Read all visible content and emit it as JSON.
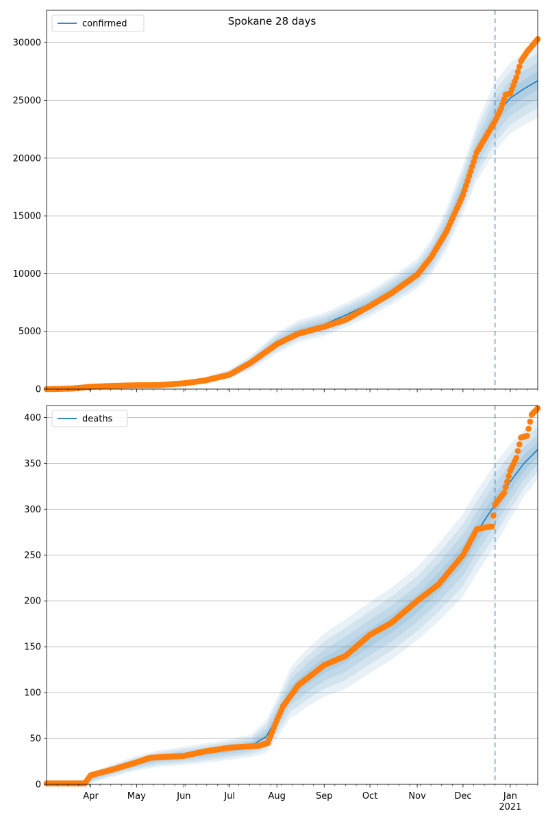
{
  "figure": {
    "title": "Spokane 28 days"
  },
  "chart_data": [
    {
      "type": "line",
      "title": "Spokane 28 days",
      "legend": {
        "placement": "top-left",
        "entries": [
          "confirmed"
        ]
      },
      "grid": {
        "y": true,
        "x": false
      },
      "ylim": [
        0,
        32800
      ],
      "xlim": [
        "2020-03-03",
        "2021-01-19"
      ],
      "y_ticks": [
        0,
        5000,
        10000,
        15000,
        20000,
        25000,
        30000
      ],
      "vline_date": "2020-12-22",
      "model_series": {
        "name": "confirmed",
        "points": [
          [
            "2020-03-03",
            0
          ],
          [
            "2020-03-20",
            60
          ],
          [
            "2020-04-01",
            150
          ],
          [
            "2020-04-15",
            270
          ],
          [
            "2020-05-01",
            330
          ],
          [
            "2020-05-15",
            380
          ],
          [
            "2020-06-01",
            560
          ],
          [
            "2020-06-15",
            780
          ],
          [
            "2020-07-01",
            1300
          ],
          [
            "2020-07-15",
            2300
          ],
          [
            "2020-08-01",
            4000
          ],
          [
            "2020-08-15",
            5000
          ],
          [
            "2020-09-01",
            5600
          ],
          [
            "2020-09-15",
            6400
          ],
          [
            "2020-10-01",
            7400
          ],
          [
            "2020-10-15",
            8500
          ],
          [
            "2020-11-01",
            10000
          ],
          [
            "2020-11-10",
            11400
          ],
          [
            "2020-11-20",
            13800
          ],
          [
            "2020-12-01",
            17300
          ],
          [
            "2020-12-10",
            20500
          ],
          [
            "2020-12-22",
            23600
          ],
          [
            "2021-01-01",
            25200
          ],
          [
            "2021-01-10",
            26000
          ],
          [
            "2021-01-19",
            26700
          ]
        ]
      },
      "band_spread": [
        [
          "2020-03-03",
          40
        ],
        [
          "2020-06-01",
          150
        ],
        [
          "2020-07-01",
          400
        ],
        [
          "2020-08-01",
          900
        ],
        [
          "2020-09-01",
          1000
        ],
        [
          "2020-10-01",
          1100
        ],
        [
          "2020-11-01",
          1300
        ],
        [
          "2020-12-01",
          2100
        ],
        [
          "2020-12-22",
          3000
        ],
        [
          "2021-01-19",
          3200
        ]
      ],
      "observed_series": {
        "anchors": [
          [
            "2020-03-03",
            0
          ],
          [
            "2020-03-20",
            50
          ],
          [
            "2020-04-01",
            200
          ],
          [
            "2020-04-15",
            280
          ],
          [
            "2020-05-01",
            330
          ],
          [
            "2020-05-15",
            340
          ],
          [
            "2020-06-01",
            500
          ],
          [
            "2020-06-15",
            750
          ],
          [
            "2020-07-01",
            1250
          ],
          [
            "2020-07-15",
            2300
          ],
          [
            "2020-08-01",
            3900
          ],
          [
            "2020-08-15",
            4800
          ],
          [
            "2020-09-01",
            5400
          ],
          [
            "2020-09-15",
            6000
          ],
          [
            "2020-10-01",
            7200
          ],
          [
            "2020-10-15",
            8300
          ],
          [
            "2020-11-01",
            9900
          ],
          [
            "2020-11-10",
            11400
          ],
          [
            "2020-11-20",
            13600
          ],
          [
            "2020-12-01",
            16800
          ],
          [
            "2020-12-10",
            20500
          ],
          [
            "2020-12-22",
            23200
          ],
          [
            "2020-12-26",
            24300
          ],
          [
            "2020-12-29",
            25500
          ],
          [
            "2021-01-01",
            25600
          ],
          [
            "2021-01-05",
            27000
          ],
          [
            "2021-01-08",
            28400
          ],
          [
            "2021-01-12",
            29200
          ],
          [
            "2021-01-19",
            30300
          ]
        ]
      }
    },
    {
      "type": "line",
      "title": "",
      "legend": {
        "placement": "top-left",
        "entries": [
          "deaths"
        ]
      },
      "grid": {
        "y": true,
        "x": false
      },
      "ylim": [
        0,
        413
      ],
      "xlim": [
        "2020-03-03",
        "2021-01-19"
      ],
      "y_ticks": [
        0,
        50,
        100,
        150,
        200,
        250,
        300,
        350,
        400
      ],
      "x_tick_labels": [
        "Apr",
        "May",
        "Jun",
        "Jul",
        "Aug",
        "Sep",
        "Oct",
        "Nov",
        "Dec",
        "Jan\n2021"
      ],
      "x_tick_dates": [
        "2020-04-01",
        "2020-05-01",
        "2020-06-01",
        "2020-07-01",
        "2020-08-01",
        "2020-09-01",
        "2020-10-01",
        "2020-11-01",
        "2020-12-01",
        "2021-01-01"
      ],
      "vline_date": "2020-12-22",
      "model_series": {
        "name": "deaths",
        "points": [
          [
            "2020-03-03",
            0
          ],
          [
            "2020-03-28",
            0
          ],
          [
            "2020-04-01",
            7
          ],
          [
            "2020-04-15",
            15
          ],
          [
            "2020-05-01",
            23
          ],
          [
            "2020-05-15",
            28
          ],
          [
            "2020-06-01",
            31
          ],
          [
            "2020-06-15",
            34
          ],
          [
            "2020-07-01",
            38
          ],
          [
            "2020-07-15",
            42
          ],
          [
            "2020-07-25",
            52
          ],
          [
            "2020-08-01",
            72
          ],
          [
            "2020-08-10",
            100
          ],
          [
            "2020-08-20",
            115
          ],
          [
            "2020-09-01",
            130
          ],
          [
            "2020-09-15",
            142
          ],
          [
            "2020-10-01",
            160
          ],
          [
            "2020-10-15",
            175
          ],
          [
            "2020-11-01",
            197
          ],
          [
            "2020-11-15",
            220
          ],
          [
            "2020-12-01",
            250
          ],
          [
            "2020-12-10",
            275
          ],
          [
            "2020-12-22",
            305
          ],
          [
            "2021-01-01",
            330
          ],
          [
            "2021-01-10",
            350
          ],
          [
            "2021-01-19",
            365
          ]
        ]
      },
      "band_spread": [
        [
          "2020-03-03",
          2
        ],
        [
          "2020-04-01",
          6
        ],
        [
          "2020-06-01",
          10
        ],
        [
          "2020-07-15",
          12
        ],
        [
          "2020-08-15",
          30
        ],
        [
          "2020-09-15",
          38
        ],
        [
          "2020-11-01",
          40
        ],
        [
          "2020-12-01",
          45
        ],
        [
          "2020-12-22",
          45
        ],
        [
          "2021-01-19",
          32
        ]
      ],
      "observed_series": {
        "anchors": [
          [
            "2020-03-03",
            1
          ],
          [
            "2020-03-28",
            1
          ],
          [
            "2020-04-01",
            10
          ],
          [
            "2020-04-15",
            16
          ],
          [
            "2020-05-01",
            24
          ],
          [
            "2020-05-10",
            29
          ],
          [
            "2020-06-01",
            31
          ],
          [
            "2020-06-15",
            36
          ],
          [
            "2020-07-01",
            40
          ],
          [
            "2020-07-20",
            42
          ],
          [
            "2020-07-26",
            45
          ],
          [
            "2020-08-01",
            70
          ],
          [
            "2020-08-05",
            85
          ],
          [
            "2020-08-15",
            108
          ],
          [
            "2020-09-01",
            130
          ],
          [
            "2020-09-15",
            140
          ],
          [
            "2020-10-01",
            163
          ],
          [
            "2020-10-15",
            176
          ],
          [
            "2020-11-01",
            200
          ],
          [
            "2020-11-15",
            218
          ],
          [
            "2020-12-01",
            250
          ],
          [
            "2020-12-10",
            278
          ],
          [
            "2020-12-15",
            280
          ],
          [
            "2020-12-20",
            281
          ],
          [
            "2020-12-22",
            305
          ],
          [
            "2020-12-28",
            318
          ],
          [
            "2021-01-01",
            342
          ],
          [
            "2021-01-05",
            356
          ],
          [
            "2021-01-08",
            378
          ],
          [
            "2021-01-12",
            380
          ],
          [
            "2021-01-15",
            403
          ],
          [
            "2021-01-19",
            410
          ]
        ]
      }
    }
  ]
}
